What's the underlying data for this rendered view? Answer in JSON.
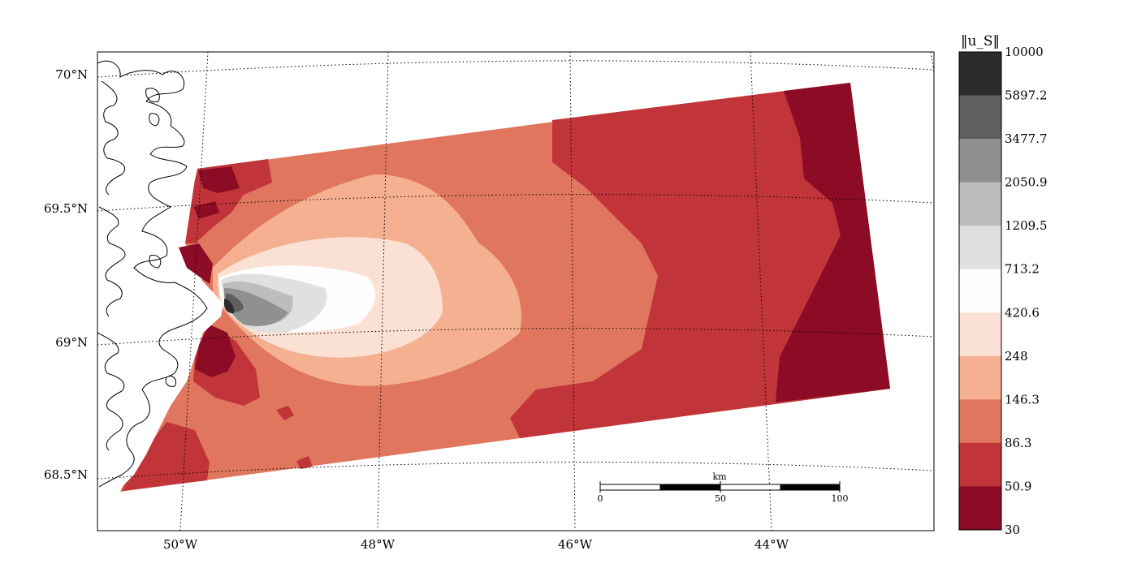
{
  "map": {
    "latitude_labels": [
      "70°N",
      "69.5°N",
      "69°N",
      "68.5°N"
    ],
    "longitude_labels": [
      "50°W",
      "48°W",
      "46°W",
      "44°W"
    ],
    "coastline": "black outline",
    "grid": "dotted"
  },
  "colorbar": {
    "label": "‖u_S‖",
    "ticks": [
      "10000",
      "5897.2",
      "3477.7",
      "2050.9",
      "1209.5",
      "713.2",
      "420.6",
      "248",
      "146.3",
      "86.3",
      "50.9",
      "30"
    ],
    "colors": [
      "#2c2c2c",
      "#5f5f5f",
      "#909090",
      "#bdbdbd",
      "#e0e0e0",
      "#fdfdfd",
      "#fbe0d4",
      "#f4b091",
      "#df765d",
      "#c1353a",
      "#8c0c26"
    ],
    "scale": "log"
  },
  "scalebar": {
    "unit": "km",
    "labels": [
      "0",
      "50",
      "100"
    ]
  }
}
